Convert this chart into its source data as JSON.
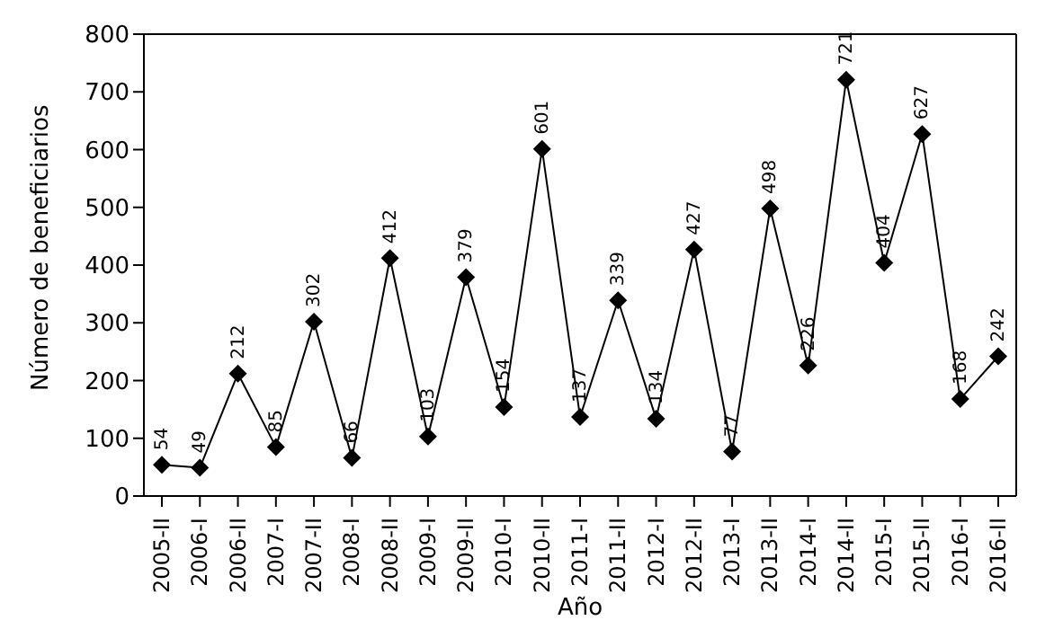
{
  "chart_data": {
    "type": "line",
    "xlabel": "Año",
    "ylabel": "Número de beneficiarios",
    "categories": [
      "2005-II",
      "2006-I",
      "2006-II",
      "2007-I",
      "2007-II",
      "2008-I",
      "2008-II",
      "2009-I",
      "2009-II",
      "2010-I",
      "2010-II",
      "2011-I",
      "2011-II",
      "2012-I",
      "2012-II",
      "2013-I",
      "2013-II",
      "2014-I",
      "2014-II",
      "2015-I",
      "2015-II",
      "2016-I",
      "2016-II"
    ],
    "series": [
      {
        "color": "#000000",
        "values": [
          54,
          49,
          212,
          85,
          302,
          66,
          412,
          103,
          379,
          154,
          601,
          137,
          339,
          134,
          427,
          77,
          498,
          226,
          721,
          404,
          627,
          168,
          242
        ]
      }
    ],
    "ylim": [
      0,
      800
    ],
    "yticks": [
      0,
      100,
      200,
      300,
      400,
      500,
      600,
      700,
      800
    ],
    "grid": false,
    "marker": "diamond",
    "line_style": "solid",
    "data_labels": true
  }
}
